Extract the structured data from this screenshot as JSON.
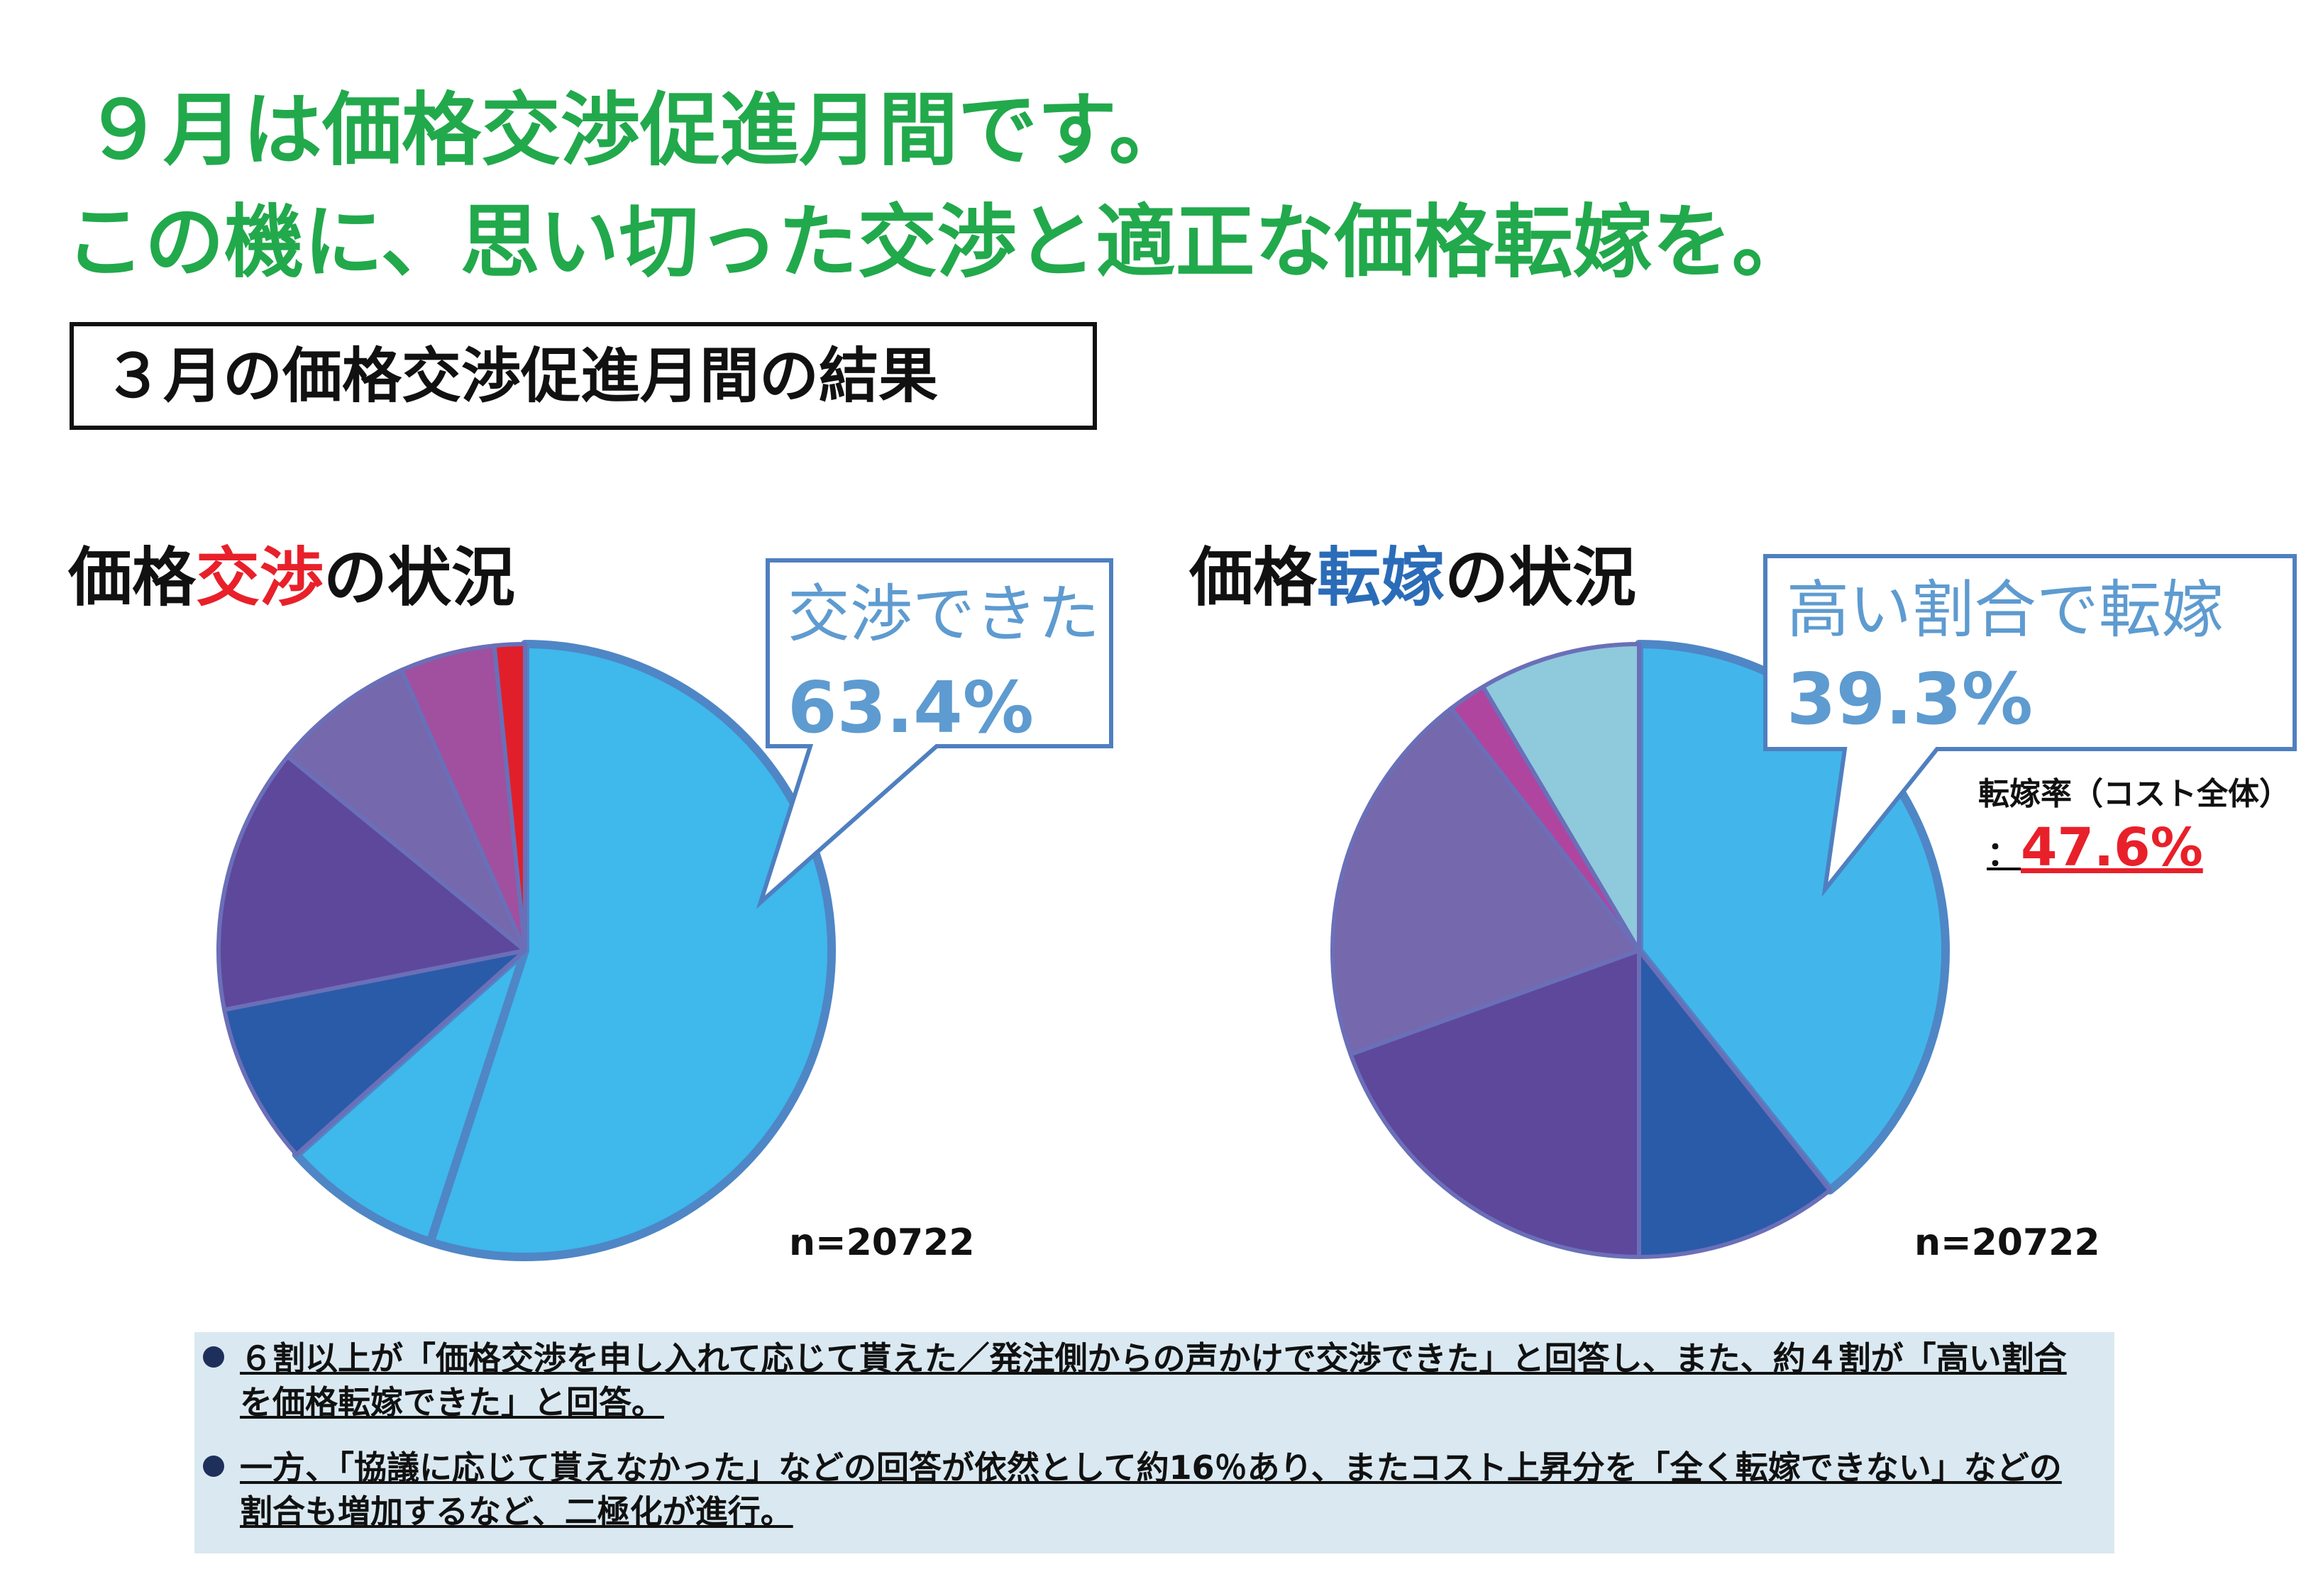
{
  "header": {
    "line1": "９月は価格交渉促進月間です。",
    "line2": "この機に、思い切った交渉と適正な価格転嫁を。",
    "boxed_title": "３月の価格交渉促進月間の結果"
  },
  "negotiation": {
    "title_pre": "価格",
    "title_hl": "交渉",
    "title_post": "の状況",
    "callout_label": "交渉できた",
    "callout_value": "63.4%",
    "n": "n=20722"
  },
  "pass_through": {
    "title_pre": "価格",
    "title_hl": "転嫁",
    "title_post": "の状況",
    "callout_label": "高い割合で転嫁",
    "callout_value": "39.3%",
    "n": "n=20722",
    "rate_label": "転嫁率（コスト全体）",
    "rate_colon": "：",
    "rate_value": "47.6%"
  },
  "notes": [
    "６割以上が「価格交渉を申し入れて応じて貰えた／発注側からの声かけで交渉できた」と回答し、また、約４割が「高い割合を価格転嫁できた」と回答。",
    "一方、「協議に応じて貰えなかった」などの回答が依然として約16％あり、またコスト上昇分を「全く転嫁できない」などの割合も増加するなど、二極化が進行。"
  ],
  "chart_data": [
    {
      "type": "pie",
      "start_angle_deg": 0,
      "direction": "clockwise",
      "slices": [
        {
          "value": 55.0,
          "color": "#3fb8ec",
          "emphasized": true
        },
        {
          "value": 8.4,
          "color": "#3fb8ec",
          "emphasized": true
        },
        {
          "value": 8.5,
          "color": "#2a5ba8"
        },
        {
          "value": 14.0,
          "color": "#5e489c"
        },
        {
          "value": 7.5,
          "color": "#7568ad"
        },
        {
          "value": 5.0,
          "color": "#a0509f"
        },
        {
          "value": 1.6,
          "color": "#e01f2b"
        }
      ]
    },
    {
      "type": "pie",
      "start_angle_deg": 0,
      "direction": "clockwise",
      "slices": [
        {
          "value": 39.3,
          "color": "#42b6ea",
          "emphasized": true
        },
        {
          "value": 10.7,
          "color": "#2a5ba8"
        },
        {
          "value": 19.5,
          "color": "#5e489c"
        },
        {
          "value": 20.0,
          "color": "#7568ad"
        },
        {
          "value": 2.0,
          "color": "#b0459f"
        },
        {
          "value": 8.5,
          "color": "#8fc9dc"
        }
      ]
    }
  ]
}
